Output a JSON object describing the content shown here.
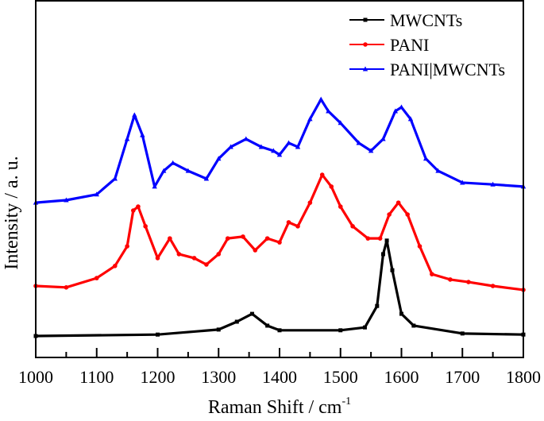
{
  "chart_data": {
    "type": "line",
    "title": "",
    "xlabel": "Raman Shift / cm",
    "xlabel_superscript": "-1",
    "ylabel": "Intensity / a. u.",
    "xlim": [
      1000,
      1800
    ],
    "ylim": [
      0,
      100
    ],
    "xticks": [
      "1000",
      "1100",
      "1200",
      "1300",
      "1400",
      "1500",
      "1600",
      "1700",
      "1800"
    ],
    "y_ticks_shown": false,
    "grid": false,
    "legend_position": "top-right",
    "series": [
      {
        "name": "MWCNTs",
        "color": "#000000",
        "marker": "square",
        "x": [
          1000,
          1200,
          1300,
          1330,
          1355,
          1380,
          1400,
          1500,
          1540,
          1560,
          1570,
          1576,
          1585,
          1600,
          1620,
          1700,
          1800
        ],
        "y": [
          6,
          6.4,
          7.8,
          10,
          12.2,
          8.9,
          7.6,
          7.6,
          8.4,
          14.4,
          28.9,
          32.7,
          24.4,
          12.2,
          8.9,
          6.7,
          6.4
        ]
      },
      {
        "name": "PANI",
        "color": "#ff0000",
        "marker": "circle",
        "x": [
          1000,
          1050,
          1100,
          1130,
          1150,
          1160,
          1168,
          1180,
          1200,
          1220,
          1235,
          1260,
          1280,
          1300,
          1315,
          1340,
          1360,
          1380,
          1400,
          1415,
          1430,
          1450,
          1470,
          1485,
          1500,
          1520,
          1545,
          1565,
          1580,
          1595,
          1610,
          1630,
          1650,
          1680,
          1710,
          1750,
          1800
        ],
        "y": [
          20,
          19.6,
          22.2,
          25.6,
          31.1,
          41.1,
          42.2,
          36.7,
          27.8,
          33.3,
          28.9,
          27.8,
          26,
          28.9,
          33.3,
          33.8,
          30,
          33.3,
          32.2,
          37.8,
          36.7,
          43.3,
          51.1,
          47.8,
          42.2,
          36.7,
          33.3,
          33.3,
          40,
          43.3,
          40,
          31.1,
          23.3,
          21.8,
          21.1,
          20,
          18.9
        ]
      },
      {
        "name": "PANI|MWCNTs",
        "color": "#0000ff",
        "marker": "triangle",
        "x": [
          1000,
          1050,
          1100,
          1130,
          1150,
          1162,
          1175,
          1195,
          1210,
          1225,
          1250,
          1280,
          1300,
          1320,
          1345,
          1370,
          1390,
          1400,
          1415,
          1430,
          1450,
          1468,
          1480,
          1500,
          1530,
          1550,
          1570,
          1590,
          1600,
          1615,
          1640,
          1660,
          1700,
          1750,
          1800
        ],
        "y": [
          43.3,
          44,
          45.6,
          50,
          61.1,
          67.8,
          62.2,
          47.8,
          52.2,
          54.4,
          52.2,
          50,
          55.6,
          58.9,
          61.1,
          58.9,
          57.8,
          56.7,
          60,
          58.9,
          66.7,
          72.2,
          68.9,
          65.6,
          60,
          57.8,
          61.1,
          68.9,
          70,
          66.7,
          55.6,
          52.2,
          48.9,
          48.4,
          47.8
        ]
      }
    ]
  }
}
